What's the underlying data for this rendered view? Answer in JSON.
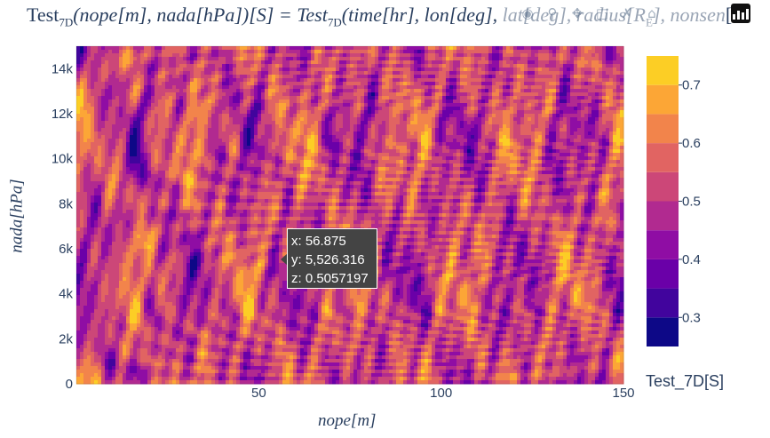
{
  "title": {
    "left": "Test",
    "sub1": "7D",
    "part1": "(nope[m], nada[hPa])[S] = Test",
    "sub2": "7D",
    "part2": "(time[hr], lon[deg], ",
    "faded": "lat[deg], radius[R",
    "faded_sub": "E",
    "faded2": "], nonsen",
    "tail": "[ "
  },
  "modebar": {
    "icons": [
      "camera-icon",
      "zoom-icon",
      "pan-icon",
      "box-select-icon",
      "lasso-icon",
      "home-icon"
    ],
    "logo": "plotly-logo-icon"
  },
  "chart_data": {
    "type": "heatmap",
    "subtype": "contour",
    "xlabel": "nope[m]",
    "ylabel": "nada[hPa]",
    "xlim": [
      0,
      150
    ],
    "ylim": [
      0,
      15000
    ],
    "x_ticks": [
      50,
      100,
      150
    ],
    "x_tick_labels": [
      "50",
      "100",
      "150"
    ],
    "y_ticks": [
      0,
      2000,
      4000,
      6000,
      8000,
      10000,
      12000,
      14000
    ],
    "y_tick_labels": [
      "0",
      "2k",
      "4k",
      "6k",
      "8k",
      "10k",
      "12k",
      "14k"
    ],
    "colorbar": {
      "title": "Test_7D[S]",
      "range": [
        0.25,
        0.75
      ],
      "ticks": [
        0.3,
        0.4,
        0.5,
        0.6,
        0.7
      ],
      "tick_labels": [
        "0.3",
        "0.4",
        "0.5",
        "0.6",
        "0.7"
      ],
      "levels": [
        0.25,
        0.3,
        0.35,
        0.4,
        0.45,
        0.5,
        0.55,
        0.6,
        0.65,
        0.7,
        0.75
      ],
      "colorscale": [
        "#0d0887",
        "#41049d",
        "#6a00a8",
        "#8f0da4",
        "#b12a90",
        "#cc4778",
        "#e16462",
        "#f2844b",
        "#fca636",
        "#fcce25",
        "#f0f921"
      ]
    },
    "hover": {
      "x": "x: 56.875",
      "y": "y: 5,526.316",
      "z": "z: 0.5057197"
    },
    "grid": false
  }
}
